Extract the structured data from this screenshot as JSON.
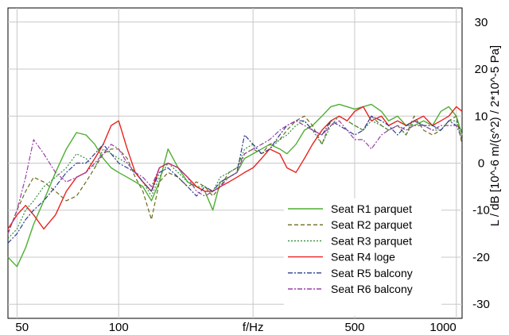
{
  "chart_data": {
    "type": "line",
    "xlabel": "f/Hz",
    "ylabel": "L / dB [10^-6 m/(s^2) / 2*10^-5 Pa]",
    "x_scale": "log",
    "xlim": [
      47,
      1040
    ],
    "ylim": [
      -33,
      33
    ],
    "x_ticks": [
      {
        "value": 50,
        "label": "50"
      },
      {
        "value": 100,
        "label": "100"
      },
      {
        "value": 250,
        "label": "f/Hz"
      },
      {
        "value": 500,
        "label": "500"
      },
      {
        "value": 1000,
        "label": "1000"
      }
    ],
    "x_gridlines": [
      50,
      100,
      250,
      500,
      1000
    ],
    "y_ticks": [
      -30,
      -20,
      -10,
      0,
      10,
      20,
      30
    ],
    "y_axis_side": "right",
    "grid": true,
    "legend_position": "bottom-right",
    "series": [
      {
        "name": "Seat R1 parquet",
        "color": "#4daf32",
        "dash": "solid",
        "x": [
          47,
          50,
          53,
          56,
          60,
          65,
          70,
          75,
          80,
          85,
          90,
          95,
          100,
          106,
          112,
          118,
          125,
          132,
          140,
          150,
          160,
          170,
          180,
          190,
          200,
          212,
          224,
          236,
          250,
          265,
          280,
          300,
          315,
          335,
          355,
          375,
          400,
          425,
          450,
          475,
          500,
          530,
          560,
          600,
          630,
          670,
          710,
          750,
          800,
          850,
          900,
          950,
          1000,
          1040
        ],
        "y": [
          -20,
          -22,
          -18,
          -13,
          -8,
          -2,
          3,
          6.5,
          6,
          4,
          1,
          -1,
          -2,
          -3,
          -4,
          -5,
          -8,
          -4,
          3,
          -1,
          -4,
          -5,
          -6,
          -10,
          -4,
          -3,
          -2,
          1,
          2,
          3,
          4,
          3,
          2,
          4,
          7,
          8,
          10,
          12,
          12.5,
          12,
          11.5,
          12,
          12.5,
          11,
          9,
          10,
          8,
          8,
          9,
          8,
          11,
          12,
          10,
          6
        ]
      },
      {
        "name": "Seat R2 parquet",
        "color": "#6b6b1e",
        "dash": "5,3",
        "x": [
          47,
          50,
          53,
          56,
          60,
          65,
          70,
          75,
          80,
          85,
          90,
          95,
          100,
          106,
          112,
          118,
          125,
          132,
          140,
          150,
          160,
          170,
          180,
          190,
          200,
          212,
          224,
          236,
          250,
          265,
          280,
          300,
          315,
          335,
          355,
          375,
          400,
          425,
          450,
          475,
          500,
          530,
          560,
          600,
          630,
          670,
          710,
          750,
          800,
          850,
          900,
          950,
          1000,
          1040
        ],
        "y": [
          -15,
          -10,
          -6,
          -3,
          -4,
          -6,
          -8,
          -7,
          -4,
          -1,
          2,
          3,
          3,
          1,
          -3,
          -6,
          -12,
          -4,
          -2,
          -3,
          -5,
          -4,
          -5,
          -7,
          -5,
          -2,
          -1,
          2,
          3,
          2,
          4,
          5,
          7,
          9,
          10,
          8,
          4,
          9,
          10,
          9,
          8,
          7,
          10,
          8,
          7,
          8,
          6,
          10,
          7,
          6,
          7,
          9,
          10,
          4
        ]
      },
      {
        "name": "Seat R3 parquet",
        "color": "#2f8f3c",
        "dash": "2,2",
        "x": [
          47,
          50,
          53,
          56,
          60,
          65,
          70,
          75,
          80,
          85,
          90,
          95,
          100,
          106,
          112,
          118,
          125,
          132,
          140,
          150,
          160,
          170,
          180,
          190,
          200,
          212,
          224,
          236,
          250,
          265,
          280,
          300,
          315,
          335,
          355,
          375,
          400,
          425,
          450,
          475,
          500,
          530,
          560,
          600,
          630,
          670,
          710,
          750,
          800,
          850,
          900,
          950,
          1000,
          1040
        ],
        "y": [
          -16,
          -14,
          -10,
          -8,
          -5,
          -3,
          -1,
          2,
          1,
          -1,
          3,
          2,
          1,
          0,
          -2,
          -4,
          -7,
          -3,
          0,
          -2,
          -4,
          -5,
          -5,
          -6,
          -3,
          -2,
          -1,
          3,
          4,
          2,
          3,
          5,
          6,
          8,
          9,
          7,
          4,
          8,
          10,
          9,
          8,
          7,
          9,
          8,
          7,
          8,
          6,
          9,
          8,
          7,
          7,
          9,
          9,
          5
        ]
      },
      {
        "name": "Seat R4 loge",
        "color": "#e8231f",
        "dash": "solid",
        "x": [
          47,
          50,
          53,
          56,
          60,
          65,
          70,
          75,
          80,
          85,
          90,
          95,
          100,
          106,
          112,
          118,
          125,
          132,
          140,
          150,
          160,
          170,
          180,
          190,
          200,
          212,
          224,
          236,
          250,
          265,
          280,
          300,
          315,
          335,
          355,
          375,
          400,
          425,
          450,
          475,
          500,
          530,
          560,
          600,
          630,
          670,
          710,
          750,
          800,
          850,
          900,
          950,
          1000,
          1040
        ],
        "y": [
          -14,
          -11,
          -9,
          -11,
          -14,
          -11,
          -6,
          -3,
          -2,
          1,
          4,
          8,
          9,
          3,
          -2,
          -4,
          -6,
          -1,
          0,
          -1,
          -3,
          -5,
          -6,
          -6,
          -5,
          -4,
          -3,
          -2,
          -1,
          1,
          3,
          2,
          -1,
          -2,
          1,
          4,
          7,
          9,
          10,
          9,
          11,
          12,
          9,
          10,
          8,
          9,
          8,
          9,
          10,
          8,
          9,
          10,
          12,
          11
        ]
      },
      {
        "name": "Seat R5 balcony",
        "color": "#2e3f8f",
        "dash": "6,2,2,2",
        "x": [
          47,
          50,
          53,
          56,
          60,
          65,
          70,
          75,
          80,
          85,
          90,
          95,
          100,
          106,
          112,
          118,
          125,
          132,
          140,
          150,
          160,
          170,
          180,
          190,
          200,
          212,
          224,
          236,
          250,
          265,
          280,
          300,
          315,
          335,
          355,
          375,
          400,
          425,
          450,
          475,
          500,
          530,
          560,
          600,
          630,
          670,
          710,
          750,
          800,
          850,
          900,
          950,
          1000,
          1040
        ],
        "y": [
          -17,
          -15,
          -12,
          -10,
          -8,
          -5,
          -2,
          0,
          0,
          2,
          4,
          2,
          0,
          -1,
          -2,
          -4,
          -6,
          -2,
          -1,
          -3,
          -5,
          -7,
          -5,
          -6,
          -4,
          -3,
          -2,
          6,
          4,
          2,
          3,
          6,
          8,
          9,
          9,
          7,
          6,
          9,
          8,
          7,
          6,
          7,
          10,
          9,
          8,
          6,
          8,
          9,
          8,
          8,
          7,
          9,
          8,
          7
        ]
      },
      {
        "name": "Seat R6 balcony",
        "color": "#9b3fa8",
        "dash": "6,2,2,2",
        "x": [
          47,
          50,
          53,
          56,
          60,
          65,
          70,
          75,
          80,
          85,
          90,
          95,
          100,
          106,
          112,
          118,
          125,
          132,
          140,
          150,
          160,
          170,
          180,
          190,
          200,
          212,
          224,
          236,
          250,
          265,
          280,
          300,
          315,
          335,
          355,
          375,
          400,
          425,
          450,
          475,
          500,
          530,
          560,
          600,
          630,
          670,
          710,
          750,
          800,
          850,
          900,
          950,
          1000,
          1040
        ],
        "y": [
          -15,
          -10,
          -3,
          5,
          2,
          -2,
          -4,
          -3,
          -2,
          0,
          2,
          4,
          3,
          0,
          -2,
          -3,
          -5,
          -1,
          0,
          -1,
          -3,
          -6,
          -7,
          -6,
          -5,
          -3,
          -2,
          2,
          3,
          4,
          5,
          7,
          8,
          9,
          8,
          7,
          6,
          8,
          9,
          7,
          5,
          5,
          3,
          6,
          7,
          8,
          7,
          8,
          8,
          7,
          8,
          8,
          8,
          5
        ]
      }
    ]
  }
}
